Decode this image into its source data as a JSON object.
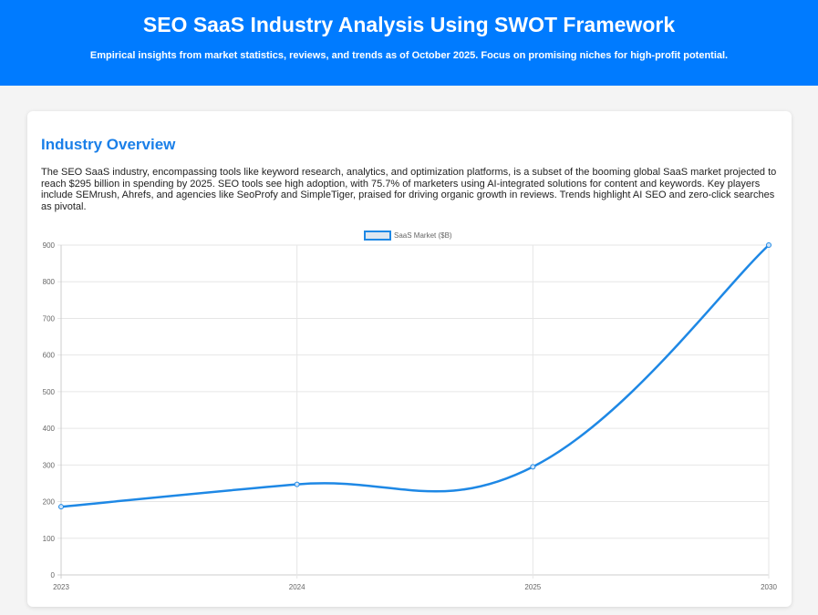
{
  "header": {
    "title": "SEO SaaS Industry Analysis Using SWOT Framework",
    "subtitle": "Empirical insights from market statistics, reviews, and trends as of October 2025. Focus on promising niches for high-profit potential."
  },
  "overview": {
    "heading": "Industry Overview",
    "text": "The SEO SaaS industry, encompassing tools like keyword research, analytics, and optimization platforms, is a subset of the booming global SaaS market projected to reach $295 billion in spending by 2025. SEO tools see high adoption, with 75.7% of marketers using AI-integrated solutions for content and keywords. Key players include SEMrush, Ahrefs, and agencies like SeoProfy and SimpleTiger, praised for driving organic growth in reviews. Trends highlight AI SEO and zero-click searches as pivotal."
  },
  "chart_data": {
    "type": "line",
    "categories": [
      "2023",
      "2024",
      "2025",
      "2030"
    ],
    "series": [
      {
        "name": "SaaS Market ($B)",
        "values": [
          186,
          247,
          295,
          900
        ]
      }
    ],
    "ylim": [
      0,
      900
    ],
    "yticks": [
      0,
      100,
      200,
      300,
      400,
      500,
      600,
      700,
      800,
      900
    ],
    "legend": "top",
    "grid": true,
    "color": "#1e88e5"
  }
}
